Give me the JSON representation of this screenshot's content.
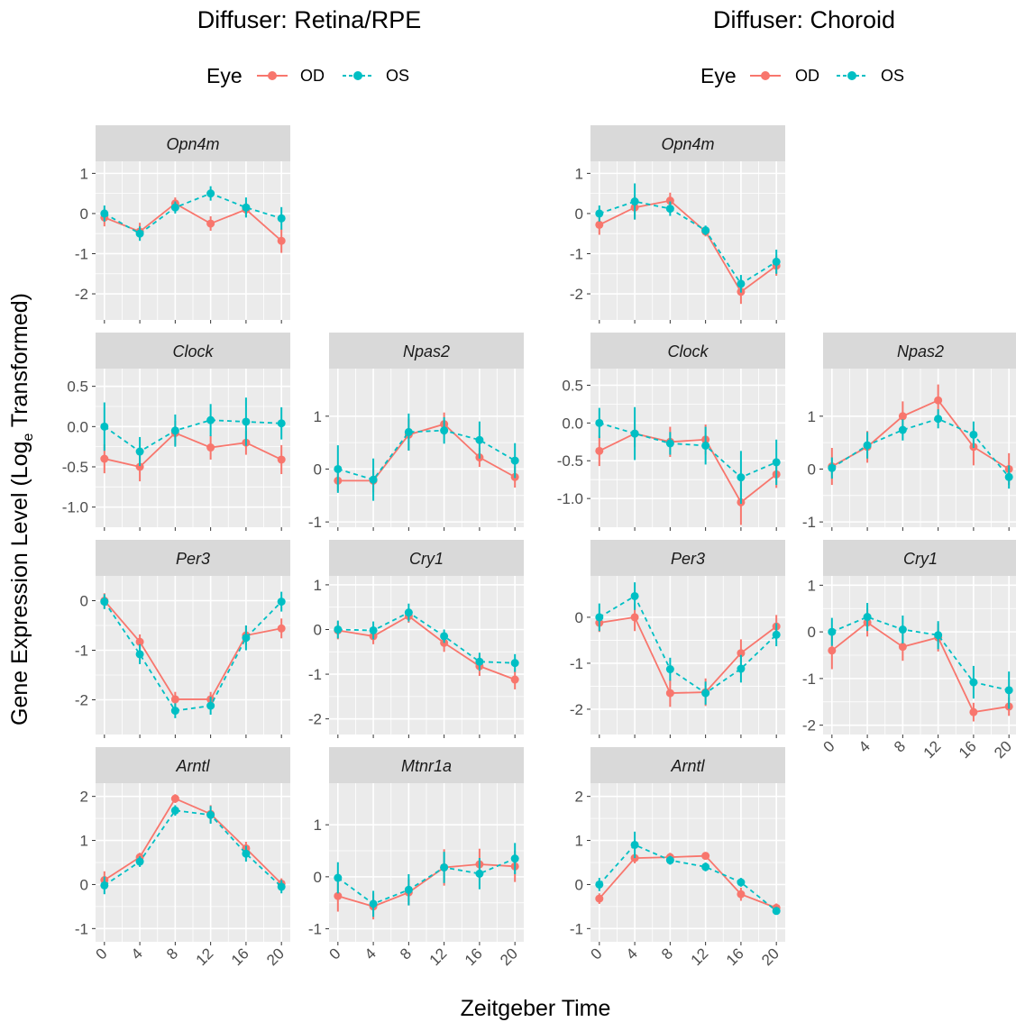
{
  "colors": {
    "OD": "#F8766D",
    "OS": "#00BFC4",
    "panel_bg": "#EBEBEB",
    "strip_bg": "#D9D9D9",
    "grid": "#FFFFFF"
  },
  "figure": {
    "xlabel": "Zeitgeber Time",
    "ylabel_main": "Gene Expression Level  (Log",
    "ylabel_sub": "e",
    "ylabel_end": " Transformed)",
    "legend_title": "Eye",
    "legend_items": [
      "OD",
      "OS"
    ]
  },
  "chart_data": [
    {
      "type": "line",
      "title": "Diffuser: Retina/RPE",
      "panels": [
        {
          "gene": "Opn4m",
          "x": [
            0,
            4,
            8,
            12,
            16,
            20
          ],
          "ylim": [
            -2.65,
            1.3
          ],
          "yticks": [
            -2,
            -1,
            0,
            1
          ],
          "series": [
            {
              "name": "OD",
              "values": [
                -0.1,
                -0.45,
                0.25,
                -0.25,
                0.1,
                -0.68
              ],
              "errors": [
                0.22,
                0.22,
                0.15,
                0.18,
                0.18,
                0.3
              ]
            },
            {
              "name": "OS",
              "values": [
                0.0,
                -0.5,
                0.15,
                0.5,
                0.15,
                -0.12
              ],
              "errors": [
                0.2,
                0.18,
                0.15,
                0.18,
                0.25,
                0.28
              ]
            }
          ]
        },
        {
          "gene": "Clock",
          "x": [
            0,
            4,
            8,
            12,
            16,
            20
          ],
          "ylim": [
            -1.25,
            0.72
          ],
          "yticks": [
            -1.0,
            -0.5,
            0.0,
            0.5
          ],
          "series": [
            {
              "name": "OD",
              "values": [
                -0.4,
                -0.5,
                -0.08,
                -0.26,
                -0.2,
                -0.41
              ],
              "errors": [
                0.18,
                0.18,
                0.15,
                0.15,
                0.15,
                0.18
              ]
            },
            {
              "name": "OS",
              "values": [
                0.0,
                -0.31,
                -0.05,
                0.08,
                0.06,
                0.04
              ],
              "errors": [
                0.3,
                0.18,
                0.2,
                0.2,
                0.3,
                0.2
              ]
            }
          ]
        },
        {
          "gene": "Npas2",
          "x": [
            0,
            4,
            8,
            12,
            16,
            20
          ],
          "ylim": [
            -1.1,
            1.9
          ],
          "yticks": [
            -1,
            0,
            1
          ],
          "series": [
            {
              "name": "OD",
              "values": [
                -0.22,
                -0.22,
                0.65,
                0.85,
                0.22,
                -0.15
              ],
              "errors": [
                0.2,
                0.22,
                0.3,
                0.22,
                0.18,
                0.2
              ]
            },
            {
              "name": "OS",
              "values": [
                0.0,
                -0.2,
                0.7,
                0.73,
                0.55,
                0.16
              ],
              "errors": [
                0.45,
                0.4,
                0.35,
                0.25,
                0.35,
                0.33
              ]
            }
          ]
        },
        {
          "gene": "Per3",
          "x": [
            0,
            4,
            8,
            12,
            16,
            20
          ],
          "ylim": [
            -2.7,
            0.5
          ],
          "yticks": [
            -2,
            -1,
            0
          ],
          "series": [
            {
              "name": "OD",
              "values": [
                0.0,
                -0.83,
                -1.99,
                -1.99,
                -0.7,
                -0.56
              ],
              "errors": [
                0.15,
                0.15,
                0.15,
                0.15,
                0.2,
                0.2
              ]
            },
            {
              "name": "OS",
              "values": [
                -0.02,
                -1.08,
                -2.22,
                -2.12,
                -0.75,
                -0.02
              ],
              "errors": [
                0.15,
                0.2,
                0.15,
                0.18,
                0.25,
                0.2
              ]
            }
          ]
        },
        {
          "gene": "Cry1",
          "x": [
            0,
            4,
            8,
            12,
            16,
            20
          ],
          "ylim": [
            -2.35,
            1.2
          ],
          "yticks": [
            -2,
            -1,
            0,
            1
          ],
          "series": [
            {
              "name": "OD",
              "values": [
                -0.02,
                -0.15,
                0.3,
                -0.3,
                -0.82,
                -1.12
              ],
              "errors": [
                0.2,
                0.18,
                0.15,
                0.2,
                0.22,
                0.22
              ]
            },
            {
              "name": "OS",
              "values": [
                0.0,
                -0.02,
                0.38,
                -0.15,
                -0.72,
                -0.75
              ],
              "errors": [
                0.2,
                0.2,
                0.2,
                0.15,
                0.2,
                0.2
              ]
            }
          ]
        },
        {
          "gene": "Arntl",
          "x": [
            0,
            4,
            8,
            12,
            16,
            20
          ],
          "ylim": [
            -1.3,
            2.3
          ],
          "yticks": [
            -1,
            0,
            1,
            2
          ],
          "series": [
            {
              "name": "OD",
              "values": [
                0.1,
                0.62,
                1.95,
                1.6,
                0.82,
                0.02
              ],
              "errors": [
                0.2,
                0.1,
                0.1,
                0.2,
                0.15,
                0.12
              ]
            },
            {
              "name": "OS",
              "values": [
                -0.02,
                0.52,
                1.68,
                1.58,
                0.7,
                -0.05
              ],
              "errors": [
                0.2,
                0.12,
                0.12,
                0.2,
                0.18,
                0.15
              ]
            }
          ]
        },
        {
          "gene": "Mtnr1a",
          "x": [
            0,
            4,
            8,
            12,
            16,
            20
          ],
          "ylim": [
            -1.25,
            1.8
          ],
          "yticks": [
            -1,
            0,
            1
          ],
          "series": [
            {
              "name": "OD",
              "values": [
                -0.37,
                -0.57,
                -0.3,
                0.18,
                0.24,
                0.2
              ],
              "errors": [
                0.3,
                0.25,
                0.25,
                0.35,
                0.3,
                0.3
              ]
            },
            {
              "name": "OS",
              "values": [
                -0.02,
                -0.52,
                -0.25,
                0.18,
                0.06,
                0.35
              ],
              "errors": [
                0.3,
                0.25,
                0.3,
                0.3,
                0.3,
                0.3
              ]
            }
          ]
        }
      ]
    },
    {
      "type": "line",
      "title": "Diffuser: Choroid",
      "panels": [
        {
          "gene": "Opn4m",
          "x": [
            0,
            4,
            8,
            12,
            16,
            20
          ],
          "ylim": [
            -2.65,
            1.3
          ],
          "yticks": [
            -2,
            -1,
            0,
            1
          ],
          "series": [
            {
              "name": "OD",
              "values": [
                -0.28,
                0.15,
                0.32,
                -0.45,
                -1.95,
                -1.3
              ],
              "errors": [
                0.25,
                0.3,
                0.2,
                0.12,
                0.3,
                0.25
              ]
            },
            {
              "name": "OS",
              "values": [
                0.0,
                0.3,
                0.12,
                -0.42,
                -1.75,
                -1.2
              ],
              "errors": [
                0.2,
                0.45,
                0.18,
                0.12,
                0.22,
                0.3
              ]
            }
          ]
        },
        {
          "gene": "Clock",
          "x": [
            0,
            4,
            8,
            12,
            16,
            20
          ],
          "ylim": [
            -1.38,
            0.72
          ],
          "yticks": [
            -1.0,
            -0.5,
            0.0,
            0.5
          ],
          "series": [
            {
              "name": "OD",
              "values": [
                -0.37,
                -0.14,
                -0.25,
                -0.22,
                -1.05,
                -0.68
              ],
              "errors": [
                0.2,
                0.18,
                0.2,
                0.2,
                0.3,
                0.18
              ]
            },
            {
              "name": "OS",
              "values": [
                0.0,
                -0.14,
                -0.27,
                -0.3,
                -0.72,
                -0.52
              ],
              "errors": [
                0.2,
                0.35,
                0.15,
                0.25,
                0.35,
                0.3
              ]
            }
          ]
        },
        {
          "gene": "Npas2",
          "x": [
            0,
            4,
            8,
            12,
            16,
            20
          ],
          "ylim": [
            -1.1,
            1.9
          ],
          "yticks": [
            -1,
            0,
            1
          ],
          "series": [
            {
              "name": "OD",
              "values": [
                0.05,
                0.42,
                1.0,
                1.3,
                0.42,
                0.0
              ],
              "errors": [
                0.35,
                0.3,
                0.28,
                0.3,
                0.35,
                0.3
              ]
            },
            {
              "name": "OS",
              "values": [
                0.02,
                0.45,
                0.74,
                0.95,
                0.65,
                -0.15
              ],
              "errors": [
                0.2,
                0.25,
                0.2,
                0.18,
                0.25,
                0.22
              ]
            }
          ]
        },
        {
          "gene": "Per3",
          "x": [
            0,
            4,
            8,
            12,
            16,
            20
          ],
          "ylim": [
            -2.55,
            0.9
          ],
          "yticks": [
            -2,
            -1,
            0
          ],
          "series": [
            {
              "name": "OD",
              "values": [
                -0.12,
                0.0,
                -1.65,
                -1.63,
                -0.78,
                -0.2
              ],
              "errors": [
                0.2,
                0.3,
                0.3,
                0.3,
                0.3,
                0.25
              ]
            },
            {
              "name": "OS",
              "values": [
                0.0,
                0.46,
                -1.13,
                -1.65,
                -1.12,
                -0.38
              ],
              "errors": [
                0.3,
                0.3,
                0.25,
                0.25,
                0.3,
                0.25
              ]
            }
          ]
        },
        {
          "gene": "Cry1",
          "x": [
            0,
            4,
            8,
            12,
            16,
            20
          ],
          "ylim": [
            -2.2,
            1.2
          ],
          "yticks": [
            -2,
            -1,
            0,
            1
          ],
          "series": [
            {
              "name": "OD",
              "values": [
                -0.4,
                0.2,
                -0.32,
                -0.12,
                -1.72,
                -1.6
              ],
              "errors": [
                0.4,
                0.3,
                0.3,
                0.3,
                0.2,
                0.2
              ]
            },
            {
              "name": "OS",
              "values": [
                0.0,
                0.32,
                0.05,
                -0.07,
                -1.08,
                -1.25
              ],
              "errors": [
                0.3,
                0.3,
                0.3,
                0.3,
                0.35,
                0.4
              ]
            }
          ]
        },
        {
          "gene": "Arntl",
          "x": [
            0,
            4,
            8,
            12,
            16,
            20
          ],
          "ylim": [
            -1.3,
            2.3
          ],
          "yticks": [
            -1,
            0,
            1,
            2
          ],
          "series": [
            {
              "name": "OD",
              "values": [
                -0.32,
                0.6,
                0.62,
                0.65,
                -0.22,
                -0.53
              ],
              "errors": [
                0.12,
                0.12,
                0.1,
                0.08,
                0.15,
                0.1
              ]
            },
            {
              "name": "OS",
              "values": [
                0.0,
                0.9,
                0.55,
                0.4,
                0.05,
                -0.6
              ],
              "errors": [
                0.15,
                0.3,
                0.1,
                0.1,
                0.1,
                0.08
              ]
            }
          ]
        }
      ]
    }
  ]
}
